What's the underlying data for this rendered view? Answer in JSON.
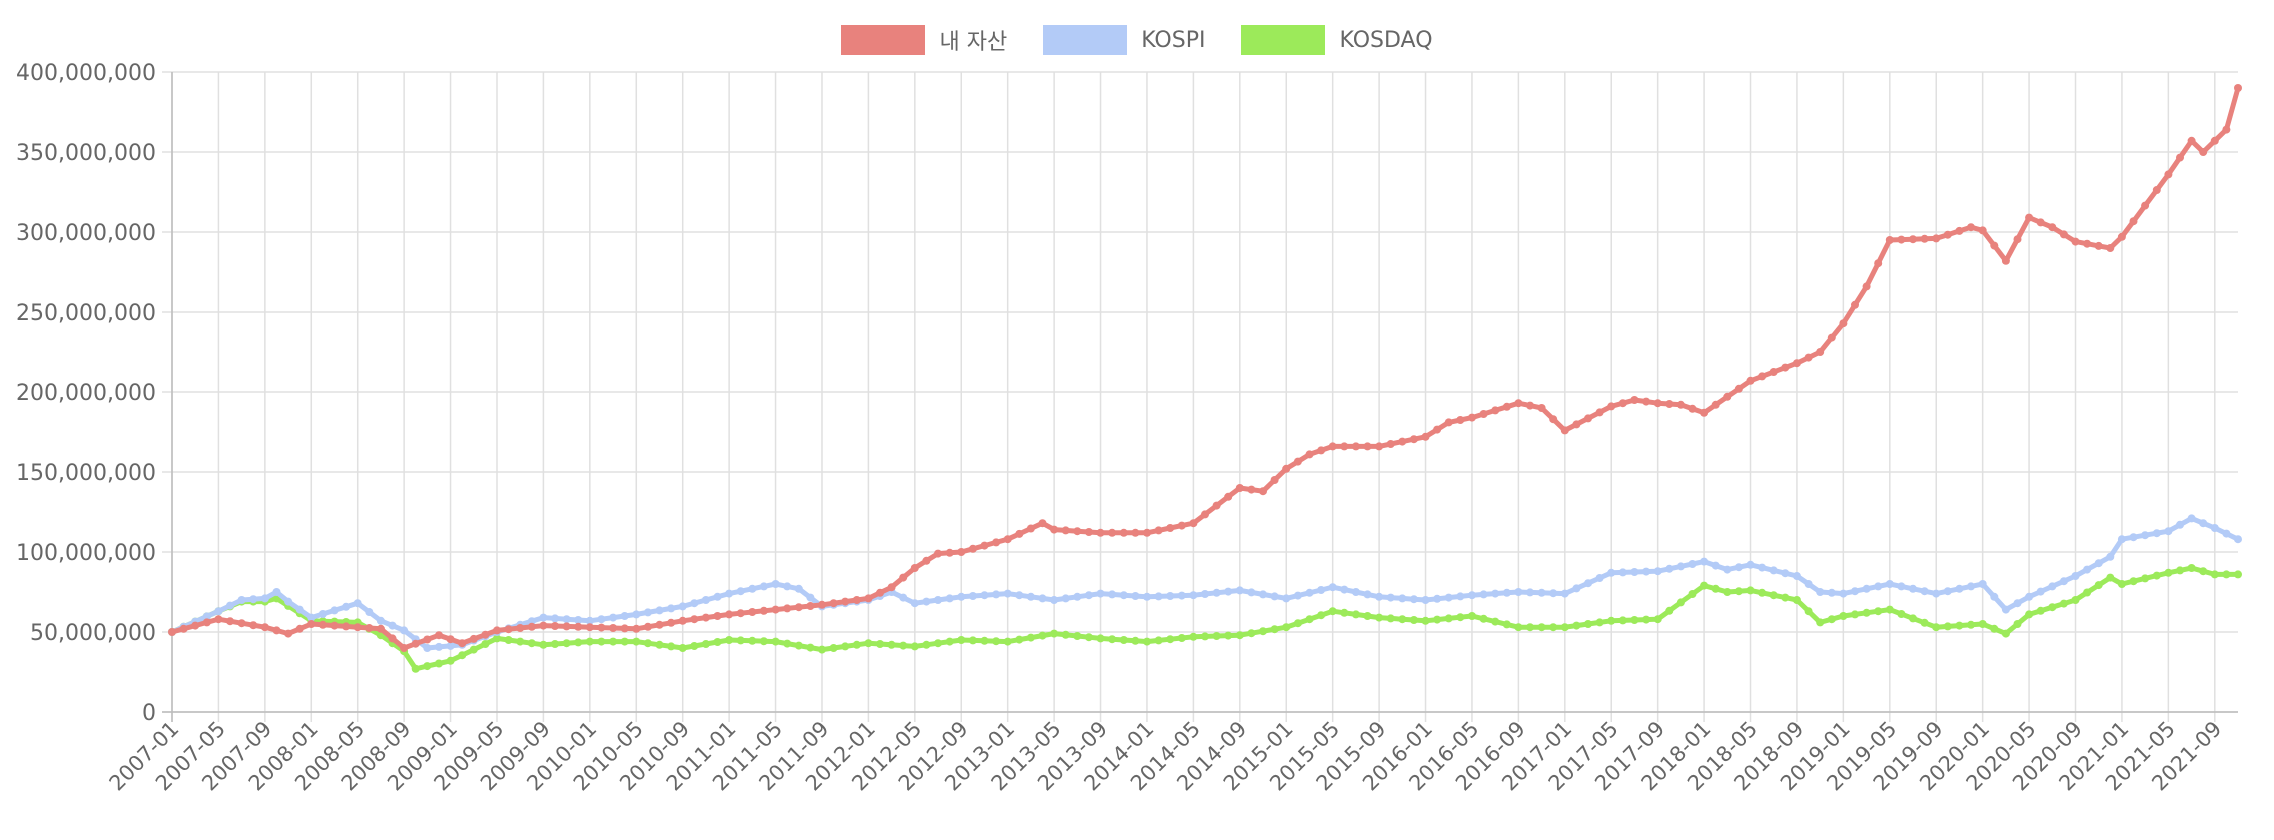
{
  "chart_data": {
    "type": "line",
    "ylim": [
      0,
      400000000
    ],
    "yticks": [
      0,
      50000000,
      100000000,
      150000000,
      200000000,
      250000000,
      300000000,
      350000000,
      400000000
    ],
    "ytick_labels": [
      "0",
      "50,000,000",
      "100,000,000",
      "150,000,000",
      "200,000,000",
      "250,000,000",
      "300,000,000",
      "350,000,000",
      "400,000,000"
    ],
    "xtick_labels": [
      "2007-01",
      "2007-05",
      "2007-09",
      "2008-01",
      "2008-05",
      "2008-09",
      "2009-01",
      "2009-05",
      "2009-09",
      "2010-01",
      "2010-05",
      "2010-09",
      "2011-01",
      "2011-05",
      "2011-09",
      "2012-01",
      "2012-05",
      "2012-09",
      "2013-01",
      "2013-05",
      "2013-09",
      "2014-01",
      "2014-05",
      "2014-09",
      "2015-01",
      "2015-05",
      "2015-09",
      "2016-01",
      "2016-05",
      "2016-09",
      "2017-01",
      "2017-05",
      "2017-09",
      "2018-01",
      "2018-05",
      "2018-09",
      "2019-01",
      "2019-05",
      "2019-09",
      "2020-01",
      "2020-05",
      "2020-09",
      "2021-01",
      "2021-05",
      "2021-09"
    ],
    "grid": true,
    "legend_position": "top",
    "series": [
      {
        "name": "내 자산",
        "color": "#e8827d",
        "anchors": [
          [
            "2007-01",
            50000000
          ],
          [
            "2007-05",
            58000000
          ],
          [
            "2007-09",
            53000000
          ],
          [
            "2007-11",
            49000000
          ],
          [
            "2008-01",
            55000000
          ],
          [
            "2008-05",
            53000000
          ],
          [
            "2008-07",
            52000000
          ],
          [
            "2008-09",
            40000000
          ],
          [
            "2008-12",
            48000000
          ],
          [
            "2009-02",
            43000000
          ],
          [
            "2009-05",
            51000000
          ],
          [
            "2009-09",
            54000000
          ],
          [
            "2010-01",
            53000000
          ],
          [
            "2010-05",
            52000000
          ],
          [
            "2010-09",
            57000000
          ],
          [
            "2011-01",
            61000000
          ],
          [
            "2011-05",
            64000000
          ],
          [
            "2011-09",
            67000000
          ],
          [
            "2012-01",
            71000000
          ],
          [
            "2012-03",
            78000000
          ],
          [
            "2012-05",
            90000000
          ],
          [
            "2012-07",
            99000000
          ],
          [
            "2012-09",
            100000000
          ],
          [
            "2013-01",
            108000000
          ],
          [
            "2013-04",
            118000000
          ],
          [
            "2013-05",
            114000000
          ],
          [
            "2013-09",
            112000000
          ],
          [
            "2014-01",
            112000000
          ],
          [
            "2014-05",
            118000000
          ],
          [
            "2014-09",
            140000000
          ],
          [
            "2014-11",
            138000000
          ],
          [
            "2015-01",
            152000000
          ],
          [
            "2015-03",
            161000000
          ],
          [
            "2015-05",
            166000000
          ],
          [
            "2015-09",
            166000000
          ],
          [
            "2016-01",
            172000000
          ],
          [
            "2016-03",
            181000000
          ],
          [
            "2016-05",
            184000000
          ],
          [
            "2016-09",
            193000000
          ],
          [
            "2016-11",
            190000000
          ],
          [
            "2017-01",
            176000000
          ],
          [
            "2017-05",
            191000000
          ],
          [
            "2017-07",
            195000000
          ],
          [
            "2017-09",
            193000000
          ],
          [
            "2017-11",
            192000000
          ],
          [
            "2018-01",
            187000000
          ],
          [
            "2018-05",
            207000000
          ],
          [
            "2018-09",
            218000000
          ],
          [
            "2018-11",
            225000000
          ],
          [
            "2019-01",
            243000000
          ],
          [
            "2019-03",
            266000000
          ],
          [
            "2019-05",
            295000000
          ],
          [
            "2019-09",
            296000000
          ],
          [
            "2019-12",
            303000000
          ],
          [
            "2020-01",
            301000000
          ],
          [
            "2020-03",
            282000000
          ],
          [
            "2020-05",
            309000000
          ],
          [
            "2020-07",
            303000000
          ],
          [
            "2020-09",
            294000000
          ],
          [
            "2020-12",
            290000000
          ],
          [
            "2021-01",
            297000000
          ],
          [
            "2021-05",
            336000000
          ],
          [
            "2021-07",
            357000000
          ],
          [
            "2021-08",
            350000000
          ],
          [
            "2021-10",
            364000000
          ],
          [
            "2021-11",
            390000000
          ]
        ]
      },
      {
        "name": "KOSPI",
        "color": "#b3cbf7",
        "anchors": [
          [
            "2007-01",
            50000000
          ],
          [
            "2007-05",
            63000000
          ],
          [
            "2007-07",
            70000000
          ],
          [
            "2007-09",
            71000000
          ],
          [
            "2007-10",
            75000000
          ],
          [
            "2007-11",
            69000000
          ],
          [
            "2008-01",
            59000000
          ],
          [
            "2008-05",
            68000000
          ],
          [
            "2008-07",
            57000000
          ],
          [
            "2008-09",
            51000000
          ],
          [
            "2008-11",
            40000000
          ],
          [
            "2009-02",
            42000000
          ],
          [
            "2009-05",
            50000000
          ],
          [
            "2009-09",
            59000000
          ],
          [
            "2010-01",
            57000000
          ],
          [
            "2010-05",
            61000000
          ],
          [
            "2010-09",
            66000000
          ],
          [
            "2011-01",
            74000000
          ],
          [
            "2011-05",
            80000000
          ],
          [
            "2011-07",
            77000000
          ],
          [
            "2011-09",
            66000000
          ],
          [
            "2012-01",
            70000000
          ],
          [
            "2012-03",
            75000000
          ],
          [
            "2012-05",
            68000000
          ],
          [
            "2012-09",
            72000000
          ],
          [
            "2013-01",
            74000000
          ],
          [
            "2013-05",
            70000000
          ],
          [
            "2013-09",
            74000000
          ],
          [
            "2014-01",
            72000000
          ],
          [
            "2014-05",
            73000000
          ],
          [
            "2014-09",
            76000000
          ],
          [
            "2015-01",
            71000000
          ],
          [
            "2015-05",
            78000000
          ],
          [
            "2015-09",
            72000000
          ],
          [
            "2016-01",
            70000000
          ],
          [
            "2016-05",
            73000000
          ],
          [
            "2016-09",
            75000000
          ],
          [
            "2017-01",
            74000000
          ],
          [
            "2017-05",
            87000000
          ],
          [
            "2017-09",
            88000000
          ],
          [
            "2018-01",
            94000000
          ],
          [
            "2018-03",
            89000000
          ],
          [
            "2018-05",
            92000000
          ],
          [
            "2018-09",
            85000000
          ],
          [
            "2018-11",
            75000000
          ],
          [
            "2019-01",
            74000000
          ],
          [
            "2019-05",
            80000000
          ],
          [
            "2019-09",
            74000000
          ],
          [
            "2020-01",
            80000000
          ],
          [
            "2020-03",
            64000000
          ],
          [
            "2020-05",
            72000000
          ],
          [
            "2020-09",
            85000000
          ],
          [
            "2020-12",
            97000000
          ],
          [
            "2021-01",
            108000000
          ],
          [
            "2021-05",
            113000000
          ],
          [
            "2021-07",
            121000000
          ],
          [
            "2021-09",
            115000000
          ],
          [
            "2021-11",
            108000000
          ]
        ]
      },
      {
        "name": "KOSDAQ",
        "color": "#9cea5a",
        "anchors": [
          [
            "2007-01",
            50000000
          ],
          [
            "2007-05",
            63000000
          ],
          [
            "2007-07",
            69000000
          ],
          [
            "2007-09",
            69000000
          ],
          [
            "2007-10",
            71000000
          ],
          [
            "2008-01",
            57000000
          ],
          [
            "2008-05",
            56000000
          ],
          [
            "2008-07",
            48000000
          ],
          [
            "2008-09",
            38000000
          ],
          [
            "2008-10",
            27000000
          ],
          [
            "2009-01",
            32000000
          ],
          [
            "2009-05",
            46000000
          ],
          [
            "2009-09",
            42000000
          ],
          [
            "2010-01",
            44000000
          ],
          [
            "2010-05",
            44000000
          ],
          [
            "2010-09",
            40000000
          ],
          [
            "2011-01",
            45000000
          ],
          [
            "2011-05",
            44000000
          ],
          [
            "2011-09",
            39000000
          ],
          [
            "2012-01",
            43000000
          ],
          [
            "2012-05",
            41000000
          ],
          [
            "2012-09",
            45000000
          ],
          [
            "2013-01",
            44000000
          ],
          [
            "2013-05",
            49000000
          ],
          [
            "2013-09",
            46000000
          ],
          [
            "2014-01",
            44000000
          ],
          [
            "2014-05",
            47000000
          ],
          [
            "2014-09",
            48000000
          ],
          [
            "2015-01",
            53000000
          ],
          [
            "2015-05",
            63000000
          ],
          [
            "2015-09",
            59000000
          ],
          [
            "2016-01",
            57000000
          ],
          [
            "2016-05",
            60000000
          ],
          [
            "2016-09",
            53000000
          ],
          [
            "2017-01",
            53000000
          ],
          [
            "2017-05",
            57000000
          ],
          [
            "2017-09",
            58000000
          ],
          [
            "2018-01",
            79000000
          ],
          [
            "2018-03",
            75000000
          ],
          [
            "2018-05",
            76000000
          ],
          [
            "2018-09",
            70000000
          ],
          [
            "2018-11",
            56000000
          ],
          [
            "2019-01",
            60000000
          ],
          [
            "2019-05",
            64000000
          ],
          [
            "2019-09",
            53000000
          ],
          [
            "2020-01",
            55000000
          ],
          [
            "2020-03",
            49000000
          ],
          [
            "2020-05",
            61000000
          ],
          [
            "2020-09",
            70000000
          ],
          [
            "2020-12",
            84000000
          ],
          [
            "2021-01",
            80000000
          ],
          [
            "2021-05",
            87000000
          ],
          [
            "2021-07",
            90000000
          ],
          [
            "2021-09",
            86000000
          ],
          [
            "2021-11",
            86000000
          ]
        ]
      }
    ]
  }
}
